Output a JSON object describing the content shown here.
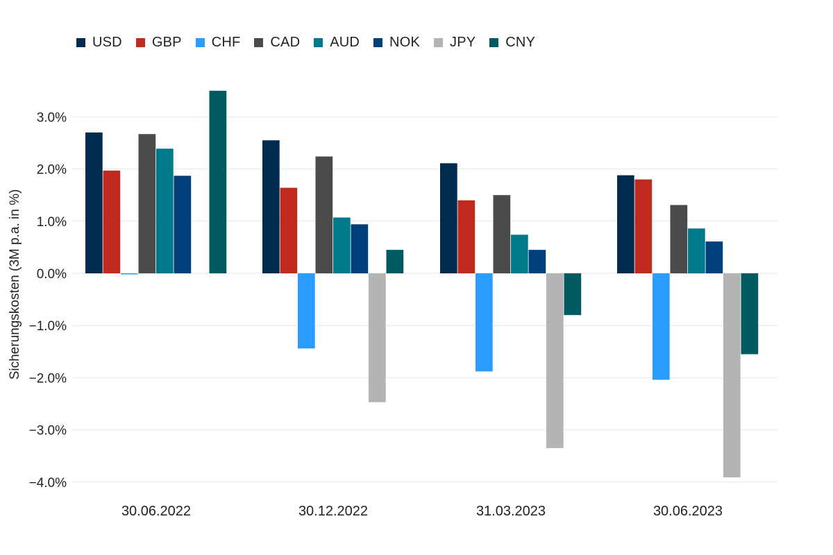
{
  "chart_data": {
    "type": "bar",
    "ylabel": "Sicherungskosten (3M p.a. in %)",
    "xlabel": "",
    "ylim": [
      -4.0,
      3.5
    ],
    "yticks": [
      3.0,
      2.0,
      1.0,
      0.0,
      -1.0,
      -2.0,
      -3.0,
      -4.0
    ],
    "ytick_labels": [
      "3.0%",
      "2.0%",
      "1.0%",
      "0.0%",
      "−1.0%",
      "−2.0%",
      "−3.0%",
      "−4.0%"
    ],
    "grid": true,
    "legend_position": "top-left",
    "categories": [
      "30.06.2022",
      "30.12.2022",
      "31.03.2023",
      "30.06.2023"
    ],
    "series": [
      {
        "name": "USD",
        "color": "#002b4e",
        "values": [
          2.7,
          2.55,
          2.11,
          1.88
        ]
      },
      {
        "name": "GBP",
        "color": "#c0291e",
        "values": [
          1.97,
          1.64,
          1.4,
          1.8
        ]
      },
      {
        "name": "CHF",
        "color": "#2a9dff",
        "values": [
          -0.02,
          -1.44,
          -1.88,
          -2.04
        ]
      },
      {
        "name": "CAD",
        "color": "#4a4a4a",
        "values": [
          2.67,
          2.24,
          1.5,
          1.31
        ]
      },
      {
        "name": "AUD",
        "color": "#007a8a",
        "values": [
          2.39,
          1.07,
          0.74,
          0.86
        ]
      },
      {
        "name": "NOK",
        "color": "#003f7a",
        "values": [
          1.87,
          0.94,
          0.45,
          0.61
        ]
      },
      {
        "name": "JPY",
        "color": "#b4b4b4",
        "values": [
          0.0,
          -2.47,
          -3.35,
          -3.91
        ]
      },
      {
        "name": "CNY",
        "color": "#005a62",
        "values": [
          3.5,
          0.45,
          -0.8,
          -1.55
        ]
      }
    ]
  }
}
